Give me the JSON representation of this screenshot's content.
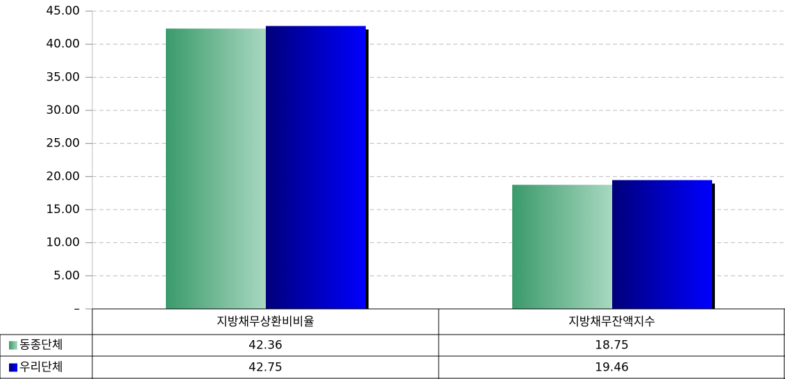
{
  "chart_data": {
    "type": "bar",
    "categories": [
      "지방채무상환비비율",
      "지방채무잔액지수"
    ],
    "series": [
      {
        "name": "동종단체",
        "color": "#3a9a6a",
        "values": [
          42.36,
          18.75
        ]
      },
      {
        "name": "우리단체",
        "color": "#0000ff",
        "values": [
          42.75,
          19.46
        ]
      }
    ],
    "ylim": [
      0,
      45
    ],
    "yticks": [
      {
        "value": 0,
        "label": "–"
      },
      {
        "value": 5,
        "label": "5.00"
      },
      {
        "value": 10,
        "label": "10.00"
      },
      {
        "value": 15,
        "label": "15.00"
      },
      {
        "value": 20,
        "label": "20.00"
      },
      {
        "value": 25,
        "label": "25.00"
      },
      {
        "value": 30,
        "label": "30.00"
      },
      {
        "value": 35,
        "label": "35.00"
      },
      {
        "value": 40,
        "label": "40.00"
      },
      {
        "value": 45,
        "label": "45.00"
      }
    ],
    "grid": true
  }
}
